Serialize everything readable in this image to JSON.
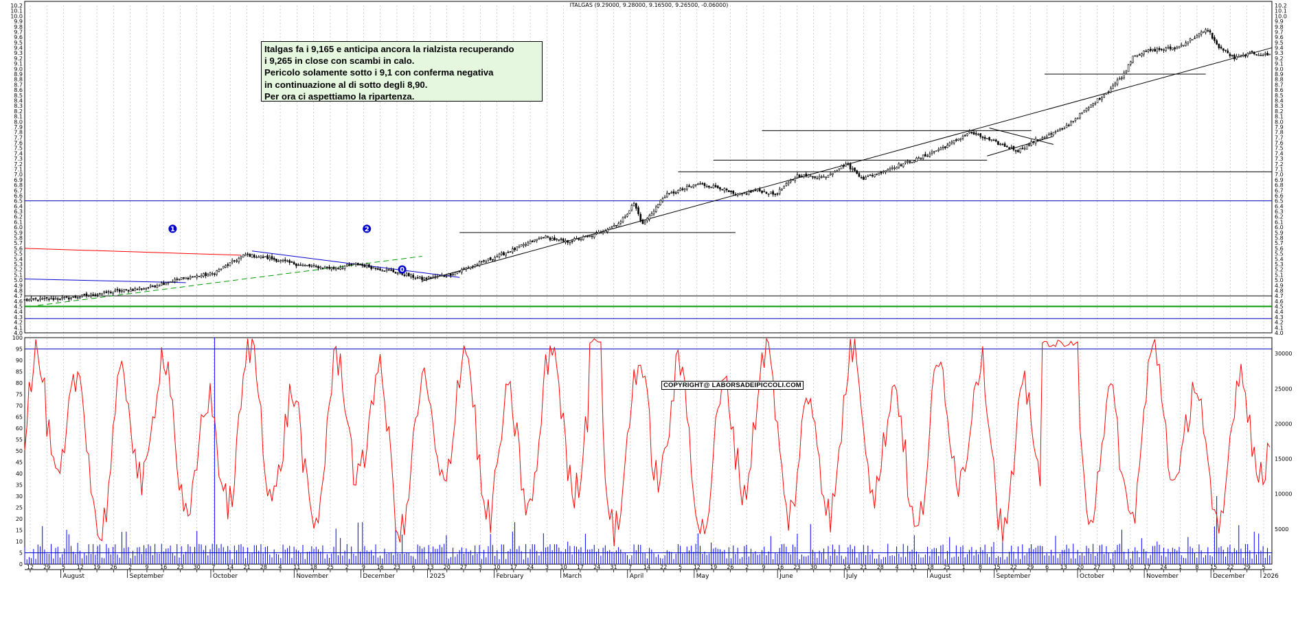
{
  "chart_title": "ITALGAS (9.29000, 9.28000, 9.16500, 9.26500, -0.06000)",
  "annotation": {
    "lines": [
      "Italgas fa i 9,165 e anticipa ancora la rialzista recuperando",
      "i 9,265 in close con scambi in calo.",
      "Pericolo solamente sotto i 9,1 con conferma negativa",
      "in continuazione al di sotto degli 8,90.",
      "Per ora ci aspettiamo la ripartenza."
    ]
  },
  "copyright": "COPYRIGHT@ LABORSADEIPICCOLI.COM",
  "markers": [
    "1",
    "2",
    "0"
  ],
  "colors": {
    "price_bars": "#000000",
    "horizontal_blue": "#0000cc",
    "support_green": "#009900",
    "trend_red": "#ff0000",
    "trend_green_dashed": "#009900",
    "oscillator": "#ff0000",
    "volume": "#0000ff",
    "grid": "#b0b0b0"
  },
  "chart_data": [
    {
      "type": "line",
      "subtype": "ohlc-bars",
      "title": "ITALGAS (9.29000, 9.28000, 9.16500, 9.26500, -0.06000)",
      "ylim": [
        4.0,
        10.2
      ],
      "y_ticks": [
        "10.2",
        "10.1",
        "10.0",
        "9.9",
        "9.8",
        "9.7",
        "9.6",
        "9.5",
        "9.4",
        "9.3",
        "9.2",
        "9.1",
        "9.0",
        "8.9",
        "8.8",
        "8.7",
        "8.6",
        "8.5",
        "8.4",
        "8.3",
        "8.2",
        "8.1",
        "8.0",
        "7.9",
        "7.8",
        "7.7",
        "7.6",
        "7.5",
        "7.4",
        "7.3",
        "7.2",
        "7.1",
        "7.0",
        "6.9",
        "6.8",
        "6.7",
        "6.6",
        "6.5",
        "6.4",
        "6.3",
        "6.2",
        "6.1",
        "6.0",
        "5.9",
        "5.8",
        "5.7",
        "5.6",
        "5.5",
        "5.4",
        "5.3",
        "5.2",
        "5.1",
        "5.0",
        "4.9",
        "4.8",
        "4.7",
        "4.6",
        "4.5",
        "4.4",
        "4.3",
        "4.2",
        "4.1",
        "4.0"
      ],
      "grid": true,
      "close_anchors": [
        {
          "x": 0,
          "y": 4.62
        },
        {
          "x": 20,
          "y": 4.66
        },
        {
          "x": 40,
          "y": 4.78
        },
        {
          "x": 55,
          "y": 4.85
        },
        {
          "x": 70,
          "y": 5.02
        },
        {
          "x": 85,
          "y": 5.12
        },
        {
          "x": 100,
          "y": 5.48
        },
        {
          "x": 110,
          "y": 5.42
        },
        {
          "x": 125,
          "y": 5.28
        },
        {
          "x": 140,
          "y": 5.22
        },
        {
          "x": 150,
          "y": 5.3
        },
        {
          "x": 165,
          "y": 5.18
        },
        {
          "x": 180,
          "y": 5.02
        },
        {
          "x": 192,
          "y": 5.1
        },
        {
          "x": 205,
          "y": 5.3
        },
        {
          "x": 220,
          "y": 5.55
        },
        {
          "x": 235,
          "y": 5.82
        },
        {
          "x": 245,
          "y": 5.72
        },
        {
          "x": 258,
          "y": 5.85
        },
        {
          "x": 270,
          "y": 6.1
        },
        {
          "x": 276,
          "y": 6.45
        },
        {
          "x": 280,
          "y": 6.05
        },
        {
          "x": 290,
          "y": 6.6
        },
        {
          "x": 305,
          "y": 6.82
        },
        {
          "x": 315,
          "y": 6.75
        },
        {
          "x": 322,
          "y": 6.6
        },
        {
          "x": 332,
          "y": 6.7
        },
        {
          "x": 340,
          "y": 6.62
        },
        {
          "x": 350,
          "y": 6.98
        },
        {
          "x": 362,
          "y": 6.95
        },
        {
          "x": 372,
          "y": 7.2
        },
        {
          "x": 380,
          "y": 6.92
        },
        {
          "x": 392,
          "y": 7.12
        },
        {
          "x": 405,
          "y": 7.3
        },
        {
          "x": 418,
          "y": 7.55
        },
        {
          "x": 428,
          "y": 7.8
        },
        {
          "x": 440,
          "y": 7.6
        },
        {
          "x": 450,
          "y": 7.45
        },
        {
          "x": 458,
          "y": 7.65
        },
        {
          "x": 470,
          "y": 7.85
        },
        {
          "x": 480,
          "y": 8.2
        },
        {
          "x": 490,
          "y": 8.55
        },
        {
          "x": 498,
          "y": 8.9
        },
        {
          "x": 502,
          "y": 9.25
        },
        {
          "x": 510,
          "y": 9.35
        },
        {
          "x": 522,
          "y": 9.4
        },
        {
          "x": 530,
          "y": 9.6
        },
        {
          "x": 536,
          "y": 9.75
        },
        {
          "x": 540,
          "y": 9.45
        },
        {
          "x": 548,
          "y": 9.2
        },
        {
          "x": 556,
          "y": 9.3
        },
        {
          "x": 562,
          "y": 9.265
        }
      ],
      "levels": [
        {
          "y": 6.5,
          "color": "#0000cc"
        },
        {
          "y": 4.7,
          "color": "#000000"
        },
        {
          "y": 4.5,
          "color": "#009900"
        },
        {
          "y": 4.27,
          "color": "#0000cc"
        }
      ]
    },
    {
      "type": "line",
      "title": "",
      "ylim": [
        0,
        100
      ],
      "y_ticks": [
        "100",
        "95",
        "90",
        "85",
        "80",
        "75",
        "70",
        "65",
        "60",
        "55",
        "50",
        "45",
        "40",
        "35",
        "30",
        "25",
        "20",
        "15",
        "10",
        "5",
        "0"
      ],
      "volume_ticks": [
        "30000",
        "25000",
        "20000",
        "15000",
        "10000",
        "5000"
      ],
      "levels": [
        95,
        5
      ],
      "grid": true
    }
  ],
  "x_axis": {
    "day_ticks": [
      "12",
      "29",
      "5",
      "12",
      "19",
      "26",
      "2",
      "9",
      "16",
      "23",
      "30",
      "7",
      "14",
      "21",
      "28",
      "4",
      "11",
      "18",
      "25",
      "2",
      "9",
      "16",
      "23",
      "6",
      "13",
      "20",
      "27",
      "3",
      "10",
      "17",
      "24",
      "3",
      "10",
      "17",
      "24",
      "31",
      "7",
      "14",
      "22",
      "5",
      "12",
      "19",
      "26",
      "2",
      "9",
      "16",
      "23",
      "30",
      "7",
      "14",
      "21",
      "28",
      "4",
      "11",
      "18",
      "25",
      "1",
      "8",
      "15",
      "22",
      "29",
      "6",
      "13",
      "20",
      "27",
      "3",
      "10",
      "17",
      "24",
      "1",
      "8",
      "15",
      "22",
      "29",
      "5"
    ],
    "month_labels": [
      "August",
      "September",
      "October",
      "November",
      "December",
      "2025",
      "February",
      "March",
      "April",
      "May",
      "June",
      "July",
      "August",
      "September",
      "October",
      "November",
      "December",
      "2026"
    ]
  }
}
